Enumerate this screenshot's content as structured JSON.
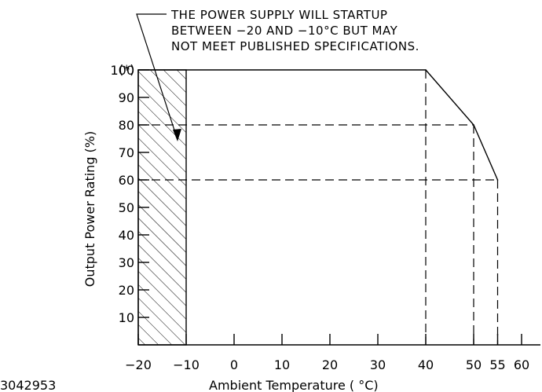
{
  "chart_data": {
    "type": "line",
    "annotation_lines": [
      "THE POWER SUPPLY WILL STARTUP",
      "BETWEEN −20 AND −10°C BUT MAY",
      "NOT MEET PUBLISHED SPECIFICATIONS."
    ],
    "xlabel": "Ambient Temperature ( °C)",
    "ylabel": "Output Power Rating (%)",
    "x_ticks": [
      -20,
      -10,
      0,
      10,
      20,
      30,
      40,
      50,
      55,
      60
    ],
    "x_tick_labels": [
      "−20",
      "−10",
      "0",
      "10",
      "20",
      "30",
      "40",
      "50",
      "55",
      "60"
    ],
    "y_ticks": [
      10,
      20,
      30,
      40,
      50,
      60,
      70,
      80,
      90,
      100
    ],
    "y_tick_labels": [
      "10",
      "20",
      "30",
      "40",
      "50",
      "60",
      "70",
      "80",
      "90",
      "100"
    ],
    "y_top_marker": "(*)",
    "xlim": [
      -20,
      65
    ],
    "ylim": [
      0,
      100
    ],
    "hatched_region": {
      "x_from": -20,
      "x_to": -10
    },
    "series": [
      {
        "x": [
          -20,
          40,
          50,
          55
        ],
        "y": [
          100,
          100,
          80,
          60
        ]
      }
    ],
    "reference_lines": [
      {
        "from": [
          -20,
          80
        ],
        "to": [
          50,
          80
        ]
      },
      {
        "from": [
          -20,
          60
        ],
        "to": [
          55,
          60
        ]
      },
      {
        "from": [
          40,
          100
        ],
        "to": [
          40,
          0
        ]
      },
      {
        "from": [
          50,
          80
        ],
        "to": [
          50,
          0
        ]
      },
      {
        "from": [
          55,
          60
        ],
        "to": [
          55,
          0
        ]
      }
    ],
    "grid": false
  },
  "figure_code": "3042953"
}
